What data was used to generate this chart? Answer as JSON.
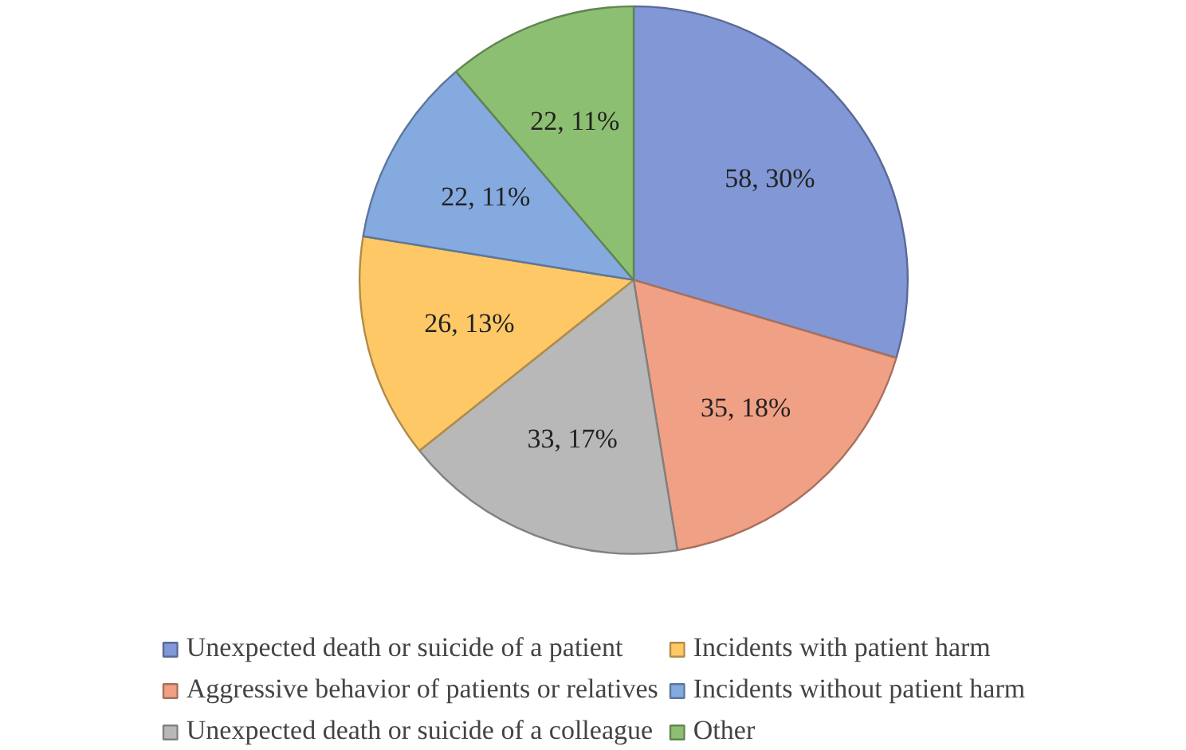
{
  "chart_data": {
    "type": "pie",
    "categories": [
      "Unexpected death or suicide of a patient",
      "Aggressive behavior of patients or relatives",
      "Unexpected death or suicide of a colleague",
      "Incidents with patient harm",
      "Incidents without patient harm",
      "Other"
    ],
    "values": [
      58,
      35,
      33,
      26,
      22,
      22
    ],
    "colors": [
      "#8197d6",
      "#f0a084",
      "#b8b8b8",
      "#fec867",
      "#84aadf",
      "#8dbf72"
    ],
    "value_labels": [
      "58, 30%",
      "35, 18%",
      "33, 17%",
      "26, 13%",
      "22, 11%",
      "22, 11%"
    ],
    "legend": "bottom"
  }
}
